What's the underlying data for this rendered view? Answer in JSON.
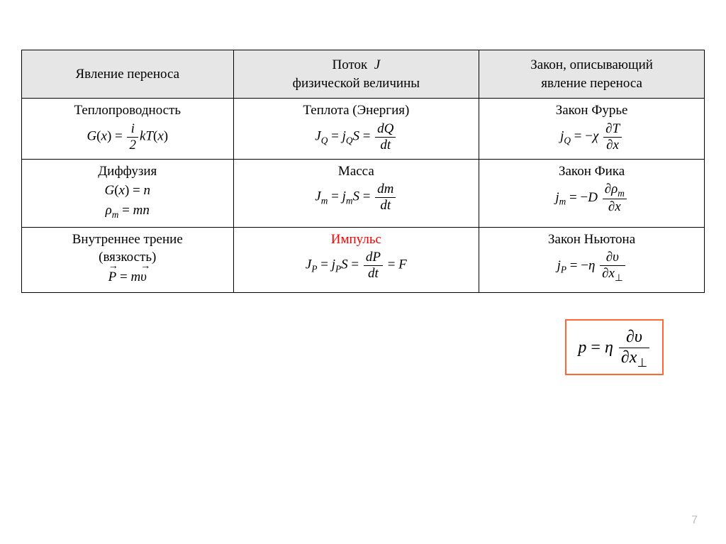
{
  "table": {
    "border_color": "#000000",
    "header_bg": "#e6e6e6",
    "text_color": "#000000",
    "accent_color": "#ff0000",
    "headers": {
      "c1": "Явление переноса",
      "c2_line1": "Поток",
      "c2_line2": "физической величины",
      "c3_line1": "Закон, описывающий",
      "c3_line2": "явление переноса"
    },
    "rows": {
      "r1": {
        "c1_title": "Теплопроводность",
        "c2_title": "Теплота (Энергия)",
        "c3_title": "Закон Фурье"
      },
      "r2": {
        "c1_title": "Диффузия",
        "c2_title": "Масса",
        "c3_title": "Закон Фика"
      },
      "r3": {
        "c1_title_l1": "Внутреннее трение",
        "c1_title_l2": "(вязкость)",
        "c2_title": "Импульс",
        "c3_title": "Закон Ньютона"
      }
    }
  },
  "boxed": {
    "border_color": "#ff6633"
  },
  "page": {
    "number": "7",
    "number_color": "#bfbfbf"
  }
}
